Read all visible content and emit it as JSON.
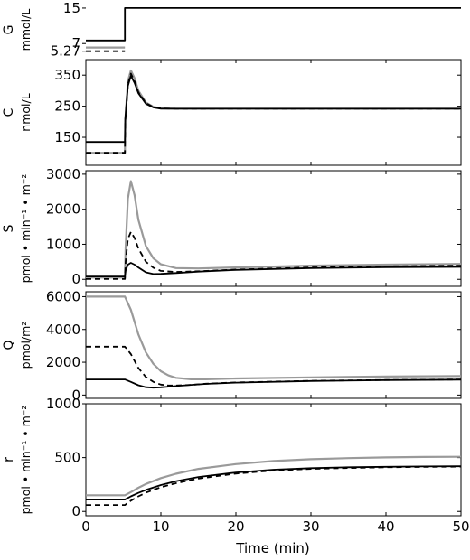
{
  "figure": {
    "xlabel": "Time (min)"
  },
  "chart_data": [
    {
      "type": "line",
      "ylabel": "G",
      "yunit": "mmol/L",
      "xlim": [
        0,
        50
      ],
      "ylim": [
        4.6,
        15.6
      ],
      "yticks": [
        5.27,
        7,
        15
      ],
      "ytick_labels": [
        "5.27",
        "7",
        "15"
      ],
      "show_xticks": false,
      "show_frame": false,
      "series": [
        {
          "color": "#000000",
          "dash": "",
          "width": 1.8,
          "x": [
            0,
            5.2,
            5.2,
            50
          ],
          "y": [
            7.7,
            7.7,
            15,
            15
          ]
        },
        {
          "color": "#000000",
          "dash": "6,4",
          "width": 1.8,
          "x": [
            0,
            5.2
          ],
          "y": [
            5.27,
            5.27
          ]
        },
        {
          "color": "#9a9a9a",
          "dash": "",
          "width": 2.2,
          "x": [
            0,
            5.2
          ],
          "y": [
            6.1,
            6.1
          ]
        }
      ]
    },
    {
      "type": "line",
      "ylabel": "C",
      "yunit": "nmol/L",
      "xlim": [
        0,
        50
      ],
      "ylim": [
        60,
        400
      ],
      "yticks": [
        150,
        250,
        350
      ],
      "ytick_labels": [
        "150",
        "250",
        "350"
      ],
      "show_xticks": true,
      "show_frame": true,
      "series": [
        {
          "color": "#9a9a9a",
          "dash": "",
          "width": 2.2,
          "x": [
            0,
            5.2,
            5.25,
            5.6,
            6,
            6.5,
            7,
            8,
            9,
            10,
            12,
            15,
            50
          ],
          "y": [
            100,
            100,
            205,
            330,
            365,
            340,
            300,
            262,
            248,
            243,
            242,
            242,
            242
          ]
        },
        {
          "color": "#000000",
          "dash": "6,4",
          "width": 1.8,
          "x": [
            0,
            5.2,
            5.25,
            5.6,
            6,
            6.5,
            7,
            8,
            9,
            10,
            12,
            15,
            50
          ],
          "y": [
            100,
            100,
            200,
            320,
            355,
            330,
            295,
            260,
            247,
            243,
            242,
            242,
            242
          ]
        },
        {
          "color": "#000000",
          "dash": "",
          "width": 1.8,
          "x": [
            0,
            5.2,
            5.25,
            5.6,
            6,
            6.5,
            7,
            8,
            9,
            10,
            12,
            15,
            50
          ],
          "y": [
            135,
            135,
            210,
            315,
            348,
            325,
            292,
            258,
            246,
            242,
            242,
            242,
            242
          ]
        }
      ]
    },
    {
      "type": "line",
      "ylabel": "S",
      "yunit": "pmol • min⁻¹ • m⁻²",
      "xlim": [
        0,
        50
      ],
      "ylim": [
        -200,
        3100
      ],
      "yticks": [
        0,
        1000,
        2000,
        3000
      ],
      "ytick_labels": [
        "0",
        "1000",
        "2000",
        "3000"
      ],
      "show_xticks": true,
      "show_frame": true,
      "series": [
        {
          "color": "#9a9a9a",
          "dash": "",
          "width": 2.2,
          "x": [
            0,
            5.2,
            5.3,
            5.6,
            6,
            6.5,
            7,
            8,
            9,
            10,
            12,
            15,
            20,
            30,
            40,
            50
          ],
          "y": [
            50,
            50,
            900,
            2300,
            2800,
            2400,
            1700,
            950,
            600,
            430,
            320,
            310,
            340,
            390,
            420,
            440
          ]
        },
        {
          "color": "#000000",
          "dash": "6,4",
          "width": 1.8,
          "x": [
            0,
            5.2,
            5.3,
            5.6,
            6,
            6.5,
            7,
            8,
            9,
            10,
            12,
            15,
            20,
            30,
            40,
            50
          ],
          "y": [
            10,
            10,
            500,
            1150,
            1350,
            1180,
            880,
            500,
            330,
            240,
            210,
            230,
            280,
            340,
            370,
            390
          ]
        },
        {
          "color": "#000000",
          "dash": "",
          "width": 1.8,
          "x": [
            0,
            5.2,
            5.3,
            5.6,
            6,
            6.5,
            7,
            8,
            9,
            10,
            12,
            15,
            20,
            30,
            40,
            50
          ],
          "y": [
            80,
            80,
            250,
            420,
            470,
            420,
            340,
            200,
            150,
            155,
            180,
            220,
            270,
            320,
            345,
            355
          ]
        }
      ]
    },
    {
      "type": "line",
      "ylabel": "Q",
      "yunit": "pmol/m²",
      "xlim": [
        0,
        50
      ],
      "ylim": [
        -200,
        6300
      ],
      "yticks": [
        0,
        2000,
        4000,
        6000
      ],
      "ytick_labels": [
        "0",
        "2000",
        "4000",
        "6000"
      ],
      "show_xticks": true,
      "show_frame": true,
      "series": [
        {
          "color": "#9a9a9a",
          "dash": "",
          "width": 2.2,
          "x": [
            0,
            5.2,
            6,
            7,
            8,
            9,
            10,
            11,
            12,
            14,
            16,
            20,
            30,
            40,
            50
          ],
          "y": [
            6000,
            6000,
            5200,
            3700,
            2600,
            1900,
            1450,
            1200,
            1050,
            960,
            960,
            1010,
            1080,
            1130,
            1160
          ]
        },
        {
          "color": "#000000",
          "dash": "6,4",
          "width": 1.8,
          "x": [
            0,
            5.2,
            6,
            7,
            8,
            9,
            10,
            11,
            12,
            14,
            16,
            20,
            30,
            40,
            50
          ],
          "y": [
            2950,
            2950,
            2500,
            1650,
            1100,
            800,
            640,
            580,
            580,
            620,
            690,
            770,
            870,
            920,
            950
          ]
        },
        {
          "color": "#000000",
          "dash": "",
          "width": 1.8,
          "x": [
            0,
            5.2,
            6,
            7,
            8,
            9,
            10,
            11,
            12,
            14,
            16,
            20,
            30,
            40,
            50
          ],
          "y": [
            950,
            950,
            800,
            600,
            480,
            450,
            470,
            510,
            550,
            620,
            680,
            760,
            860,
            910,
            940
          ]
        }
      ]
    },
    {
      "type": "line",
      "ylabel": "r",
      "yunit": "pmol • min⁻¹ • m⁻²",
      "xlim": [
        0,
        50
      ],
      "ylim": [
        -40,
        1000
      ],
      "yticks": [
        0,
        500,
        1000
      ],
      "ytick_labels": [
        "0",
        "500",
        "1000"
      ],
      "show_xticks": true,
      "show_frame": true,
      "series": [
        {
          "color": "#9a9a9a",
          "dash": "",
          "width": 2.2,
          "x": [
            0,
            5.2,
            6,
            7,
            8,
            10,
            12,
            15,
            20,
            25,
            30,
            35,
            40,
            45,
            50
          ],
          "y": [
            150,
            150,
            180,
            220,
            255,
            310,
            350,
            395,
            440,
            468,
            485,
            495,
            502,
            506,
            508
          ]
        },
        {
          "color": "#000000",
          "dash": "6,4",
          "width": 1.8,
          "x": [
            0,
            5.2,
            6,
            7,
            8,
            10,
            12,
            15,
            20,
            25,
            30,
            35,
            40,
            45,
            50
          ],
          "y": [
            60,
            60,
            100,
            140,
            175,
            225,
            262,
            305,
            352,
            380,
            395,
            404,
            410,
            414,
            416
          ]
        },
        {
          "color": "#000000",
          "dash": "",
          "width": 1.8,
          "x": [
            0,
            5.2,
            6,
            7,
            8,
            10,
            12,
            15,
            20,
            25,
            30,
            35,
            40,
            45,
            50
          ],
          "y": [
            110,
            110,
            140,
            172,
            200,
            245,
            280,
            320,
            362,
            388,
            402,
            410,
            415,
            418,
            420
          ]
        }
      ]
    }
  ],
  "xaxis": {
    "ticks": [
      0,
      10,
      20,
      30,
      40,
      50
    ],
    "tick_labels": [
      "0",
      "10",
      "20",
      "30",
      "40",
      "50"
    ]
  }
}
